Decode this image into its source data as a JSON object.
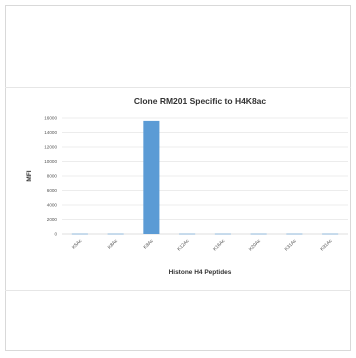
{
  "chart_data": {
    "type": "bar",
    "title": "Clone RM201 Specific to H4K8ac",
    "xlabel": "Histone H4 Peptides",
    "ylabel": "MFI",
    "categories": [
      "K5Ac",
      "K8Ac",
      "K8Ac",
      "K12Ac",
      "K16Ac",
      "K20Ac",
      "K31Ac",
      "K91Ac"
    ],
    "values": [
      40,
      40,
      15600,
      40,
      40,
      40,
      40,
      40
    ],
    "ylim": [
      0,
      16000
    ],
    "yticks": [
      0,
      2000,
      4000,
      6000,
      8000,
      10000,
      12000,
      14000,
      16000
    ],
    "grid": true,
    "legend": "none",
    "bar_color": "#5b9bd5",
    "grid_color": "#d9d9d9"
  }
}
